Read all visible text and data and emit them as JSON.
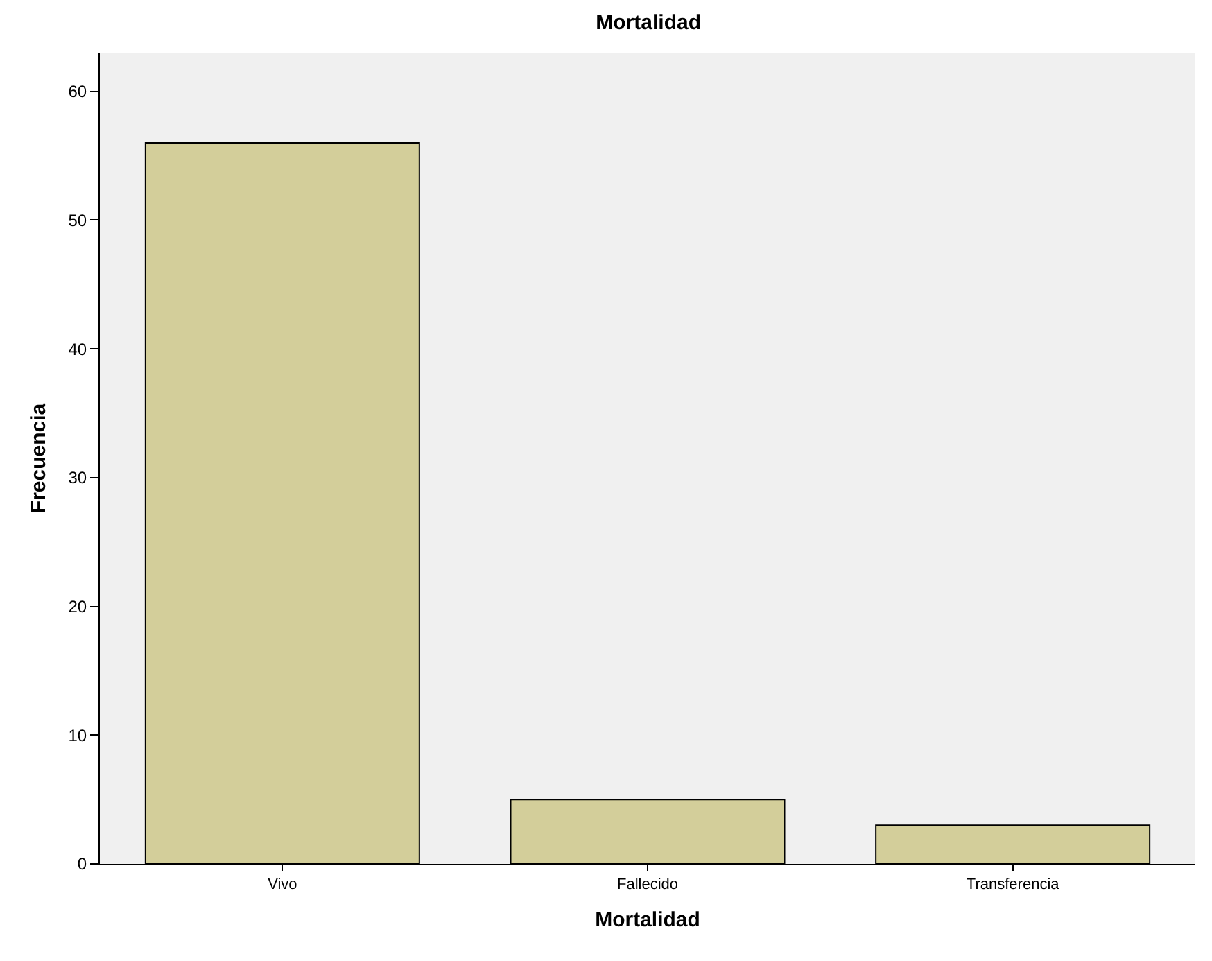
{
  "chart_data": {
    "type": "bar",
    "title": "Mortalidad",
    "xlabel": "Mortalidad",
    "ylabel": "Frecuencia",
    "categories": [
      "Vivo",
      "Fallecido",
      "Transferencia"
    ],
    "values": [
      56,
      5,
      3
    ],
    "color": "#d3ce9a",
    "ylim": [
      0,
      63
    ],
    "yticks": [
      0,
      10,
      20,
      30,
      40,
      50,
      60
    ],
    "grid": false
  }
}
